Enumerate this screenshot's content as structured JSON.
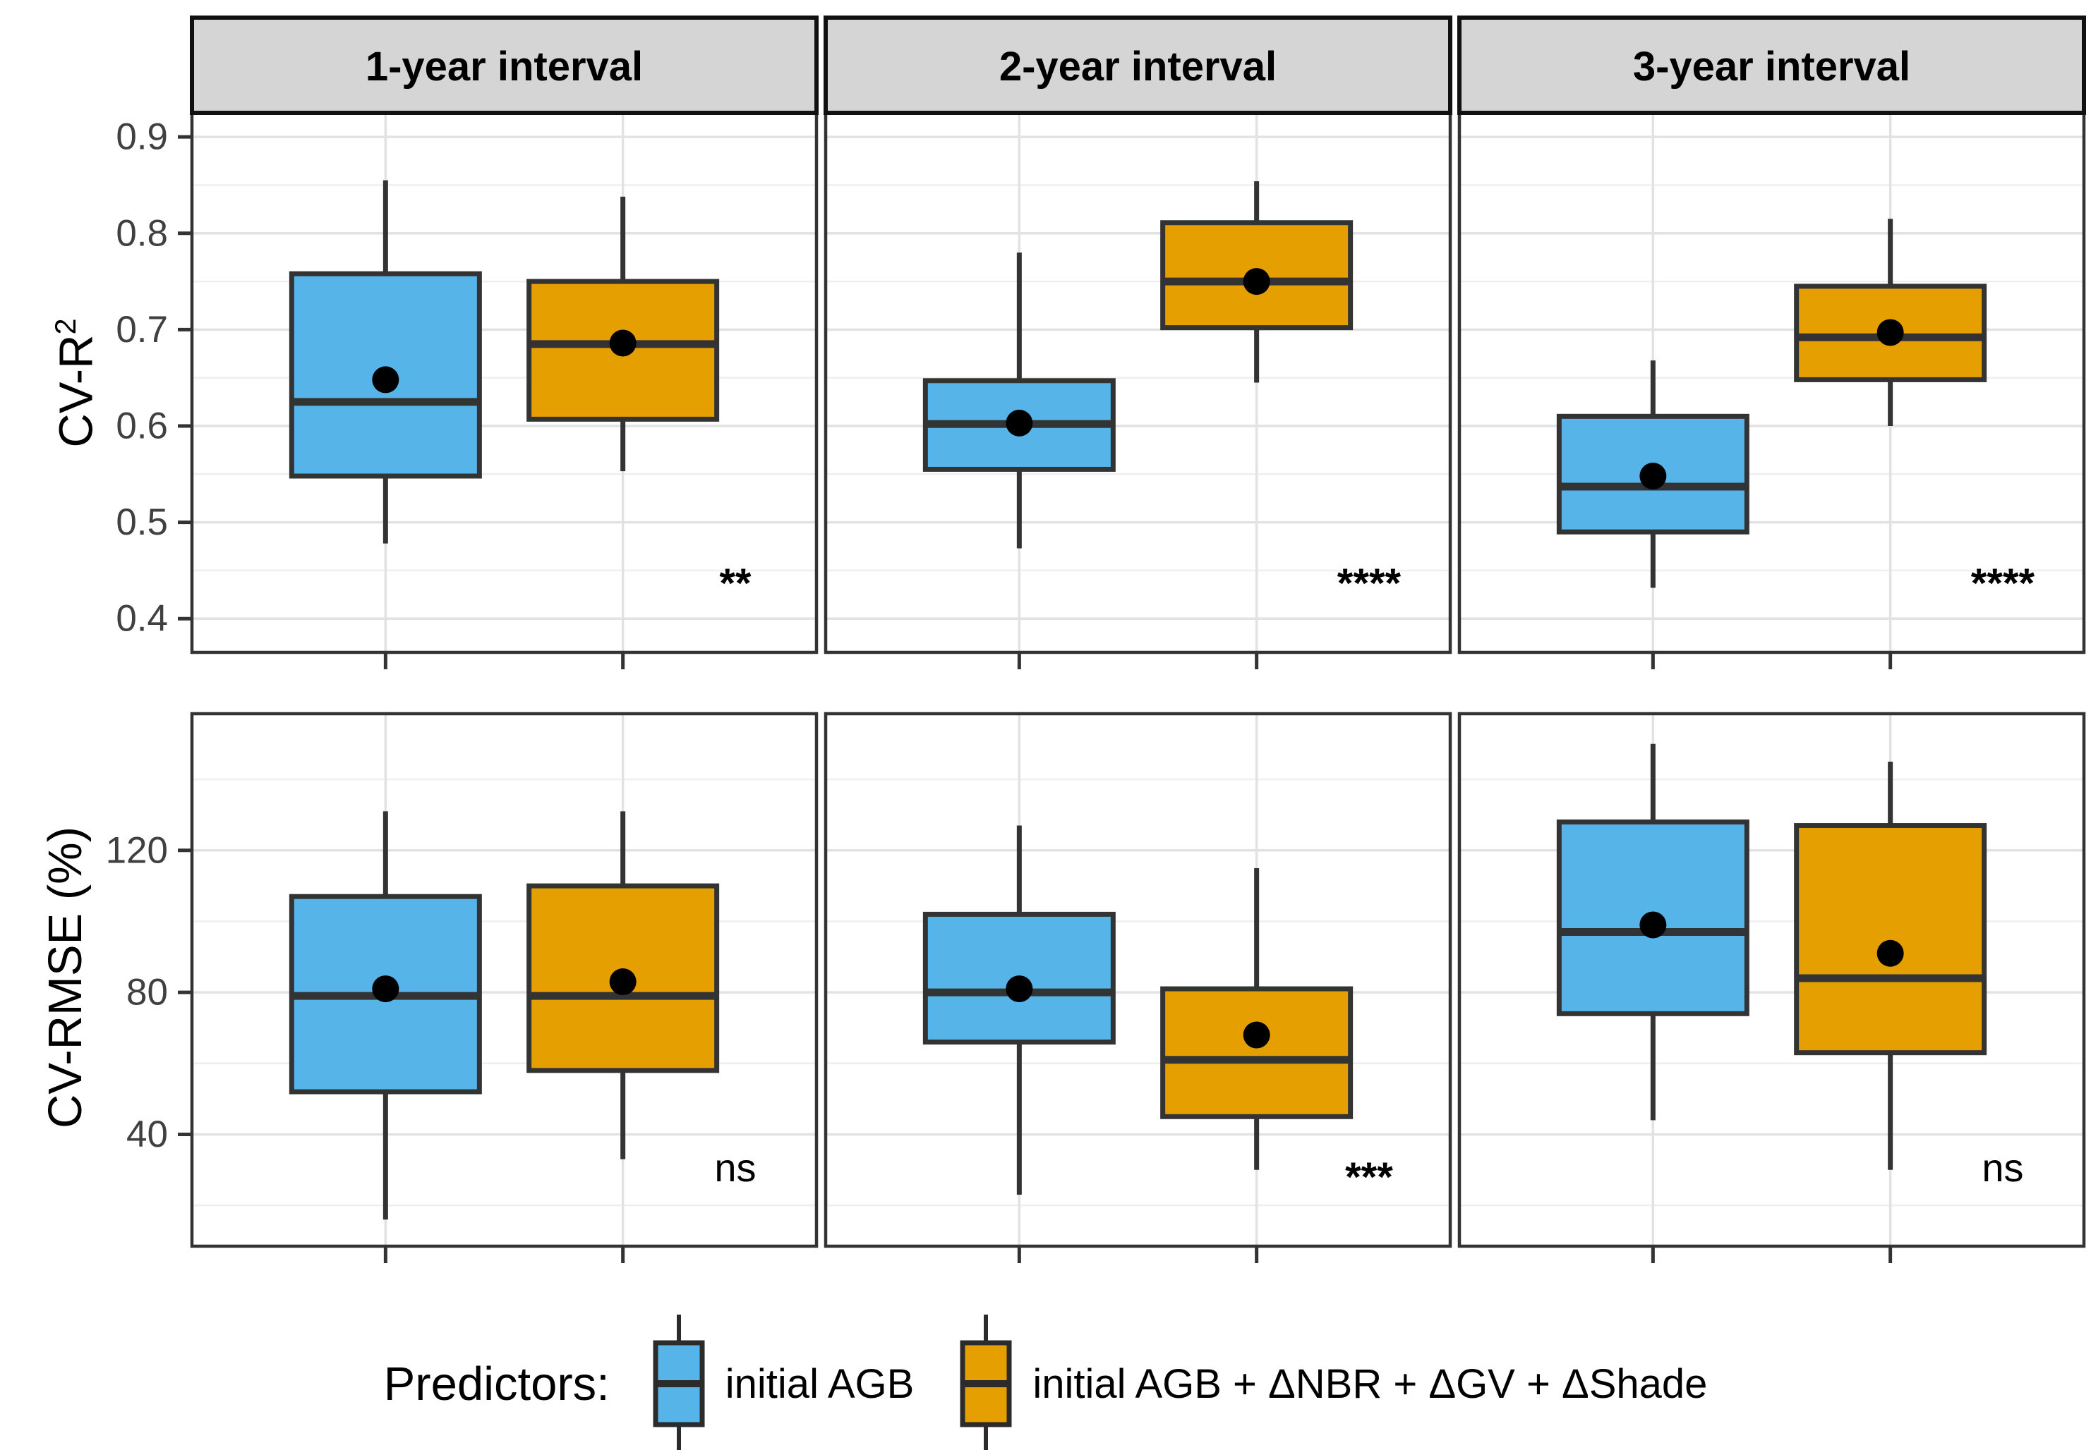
{
  "chart_data": {
    "type": "boxplot",
    "facet_columns": [
      "1-year interval",
      "2-year interval",
      "3-year interval"
    ],
    "legend": {
      "title": "Predictors:",
      "entries": [
        {
          "label": "initial AGB",
          "color": "#56B4E9"
        },
        {
          "label": "initial AGB + ΔNBR + ΔGV + ΔShade",
          "color": "#E69F00"
        }
      ]
    },
    "colors": {
      "blue": "#56B4E9",
      "orange": "#E69F00",
      "box_stroke": "#333333",
      "grid_major": "#E2E2E2",
      "grid_minor": "#EFEFEF",
      "strip_bg": "#D5D5D5",
      "strip_border": "#111111",
      "panel_border": "#333333",
      "axis_text": "#404040",
      "mean_dot": "#000000"
    },
    "grid": true,
    "legend_position": "bottom",
    "rows": [
      {
        "ylabel": "CV-R²",
        "ylabel_base": "CV-R",
        "ylabel_sup": "2",
        "ylim": [
          0.365,
          0.925
        ],
        "yticks": [
          0.4,
          0.5,
          0.6,
          0.7,
          0.8,
          0.9
        ],
        "ytick_labels": [
          "0.4",
          "0.5",
          "0.6",
          "0.7",
          "0.8",
          "0.9"
        ],
        "yminor": [
          0.45,
          0.55,
          0.65,
          0.75,
          0.85
        ],
        "panels": [
          {
            "facet": "1-year interval",
            "significance": "**",
            "boxes": [
              {
                "series": "initial AGB",
                "whisker_low": 0.478,
                "q1": 0.548,
                "median": 0.625,
                "mean": 0.648,
                "q3": 0.758,
                "whisker_high": 0.855
              },
              {
                "series": "initial AGB + ΔNBR + ΔGV + ΔShade",
                "whisker_low": 0.553,
                "q1": 0.607,
                "median": 0.685,
                "mean": 0.686,
                "q3": 0.75,
                "whisker_high": 0.838
              }
            ]
          },
          {
            "facet": "2-year interval",
            "significance": "****",
            "boxes": [
              {
                "series": "initial AGB",
                "whisker_low": 0.473,
                "q1": 0.555,
                "median": 0.602,
                "mean": 0.603,
                "q3": 0.647,
                "whisker_high": 0.78
              },
              {
                "series": "initial AGB + ΔNBR + ΔGV + ΔShade",
                "whisker_low": 0.645,
                "q1": 0.702,
                "median": 0.75,
                "mean": 0.75,
                "q3": 0.811,
                "whisker_high": 0.854
              }
            ]
          },
          {
            "facet": "3-year interval",
            "significance": "****",
            "boxes": [
              {
                "series": "initial AGB",
                "whisker_low": 0.432,
                "q1": 0.49,
                "median": 0.537,
                "mean": 0.548,
                "q3": 0.61,
                "whisker_high": 0.668
              },
              {
                "series": "initial AGB + ΔNBR + ΔGV + ΔShade",
                "whisker_low": 0.6,
                "q1": 0.648,
                "median": 0.692,
                "mean": 0.697,
                "q3": 0.745,
                "whisker_high": 0.815
              }
            ]
          }
        ]
      },
      {
        "ylabel": "CV-RMSE (%)",
        "ylabel_base": "CV-RMSE (%)",
        "ylabel_sup": "",
        "ylim": [
          8.5,
          158.5
        ],
        "yticks": [
          40,
          80,
          120
        ],
        "ytick_labels": [
          "40",
          "80",
          "120"
        ],
        "yminor": [
          20,
          60,
          100,
          140
        ],
        "panels": [
          {
            "facet": "1-year interval",
            "significance": "ns",
            "boxes": [
              {
                "series": "initial AGB",
                "whisker_low": 16,
                "q1": 52,
                "median": 79,
                "mean": 81,
                "q3": 107,
                "whisker_high": 131
              },
              {
                "series": "initial AGB + ΔNBR + ΔGV + ΔShade",
                "whisker_low": 33,
                "q1": 58,
                "median": 79,
                "mean": 83,
                "q3": 110,
                "whisker_high": 131
              }
            ]
          },
          {
            "facet": "2-year interval",
            "significance": "***",
            "boxes": [
              {
                "series": "initial AGB",
                "whisker_low": 23,
                "q1": 66,
                "median": 80,
                "mean": 81,
                "q3": 102,
                "whisker_high": 127
              },
              {
                "series": "initial AGB + ΔNBR + ΔGV + ΔShade",
                "whisker_low": 30,
                "q1": 45,
                "median": 61,
                "mean": 68,
                "q3": 81,
                "whisker_high": 115
              }
            ]
          },
          {
            "facet": "3-year interval",
            "significance": "ns",
            "boxes": [
              {
                "series": "initial AGB",
                "whisker_low": 44,
                "q1": 74,
                "median": 97,
                "mean": 99,
                "q3": 128,
                "whisker_high": 150
              },
              {
                "series": "initial AGB + ΔNBR + ΔGV + ΔShade",
                "whisker_low": 30,
                "q1": 63,
                "median": 84,
                "mean": 91,
                "q3": 127,
                "whisker_high": 145
              }
            ]
          }
        ]
      }
    ]
  }
}
